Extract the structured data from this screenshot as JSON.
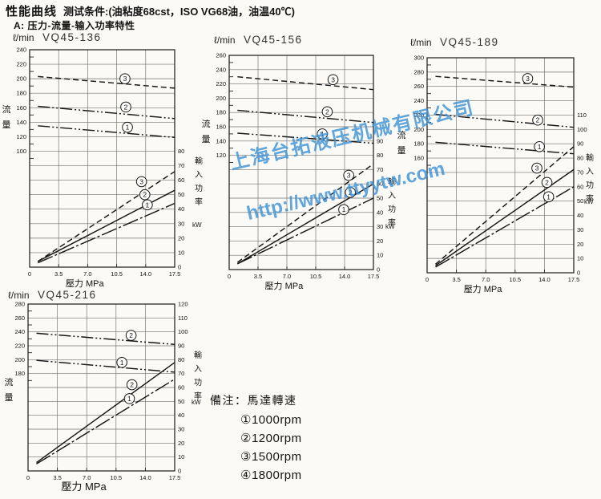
{
  "page": {
    "title_main": "性能曲线",
    "title_conditions": "测试条件:(油粘度68cst，ISO VG68油，油温40℃)",
    "subtitle": "A: 压力-流量-输入功率特性"
  },
  "watermark": {
    "line1": "上海台拓液压机械有限公司",
    "line2": "http://www.ttyytw.com",
    "color": "rgba(62,146,212,0.82)"
  },
  "legend": {
    "heading": "備注：馬達轉速",
    "items": [
      "①1000rpm",
      "②1200rpm",
      "③1500rpm",
      "④1800rpm"
    ]
  },
  "chart_data": [
    {
      "type": "line",
      "unit_label": "ℓ/min",
      "title": "VQ45-136",
      "xlabel": "壓力 MPa",
      "x_ticks": [
        "0",
        "3.5",
        "7.0",
        "10.5",
        "14.0",
        "17.5"
      ],
      "x_tick_vals": [
        0,
        3.5,
        7,
        10.5,
        14,
        17.5
      ],
      "x_range": [
        0,
        17.5
      ],
      "flow_axis": {
        "label": "流量",
        "ticks": [
          240,
          220,
          200,
          180,
          160,
          140,
          120,
          100
        ]
      },
      "power_axis": {
        "label": "輸入功率",
        "unit": "kW",
        "ticks": [
          80,
          70,
          60,
          50,
          40,
          30,
          20,
          10,
          0
        ]
      },
      "align": {
        "flow": 100,
        "power": 80
      },
      "frame_top_flow": 240,
      "flow_series": [
        {
          "label": "3",
          "rpm": "1500rpm",
          "style": "dashed",
          "points": [
            [
              1,
              203
            ],
            [
              17.5,
              187
            ]
          ],
          "label_at": [
            11.5,
            200
          ]
        },
        {
          "label": "2",
          "rpm": "1200rpm",
          "style": "dashdot",
          "points": [
            [
              1,
              162
            ],
            [
              17.5,
              145
            ]
          ],
          "label_at": [
            11.6,
            161
          ]
        },
        {
          "label": "1",
          "rpm": "1000rpm",
          "style": "dashdot",
          "points": [
            [
              1,
              135
            ],
            [
              17.5,
              119
            ]
          ],
          "label_at": [
            11.8,
            133
          ]
        }
      ],
      "power_series": [
        {
          "label": "3",
          "rpm": "1500rpm",
          "style": "dashed",
          "points": [
            [
              1,
              4
            ],
            [
              17.5,
              66
            ]
          ],
          "label_at": [
            13.5,
            59
          ]
        },
        {
          "label": "2",
          "rpm": "1200rpm",
          "style": "solid",
          "points": [
            [
              1,
              4
            ],
            [
              17.5,
              53
            ]
          ],
          "label_at": [
            13.9,
            50
          ]
        },
        {
          "label": "1",
          "rpm": "1000rpm",
          "style": "longdashdot",
          "points": [
            [
              1,
              3
            ],
            [
              17.5,
              44
            ]
          ],
          "label_at": [
            14.2,
            43
          ]
        }
      ]
    },
    {
      "type": "line",
      "unit_label": "ℓ/min",
      "title": "VQ45-156",
      "xlabel": "壓力 MPa",
      "x_ticks": [
        "0",
        "3.5",
        "7.0",
        "10.5",
        "14.0",
        "17.5"
      ],
      "x_tick_vals": [
        0,
        3.5,
        7,
        10.5,
        14,
        17.5
      ],
      "x_range": [
        0,
        17.5
      ],
      "flow_axis": {
        "label": "流量",
        "ticks": [
          260,
          240,
          220,
          200,
          180,
          160,
          140,
          120
        ]
      },
      "power_axis": {
        "label": "輸入功率",
        "unit": "kW",
        "ticks": [
          90,
          80,
          70,
          60,
          50,
          40,
          30,
          20,
          10,
          0
        ]
      },
      "align": {
        "flow": 120,
        "power": 80
      },
      "frame_top_flow": 260,
      "flow_series": [
        {
          "label": "3",
          "rpm": "1500rpm",
          "style": "dashed",
          "points": [
            [
              1,
              230
            ],
            [
              17.5,
              212
            ]
          ],
          "label_at": [
            12.6,
            226
          ]
        },
        {
          "label": "2",
          "rpm": "1200rpm",
          "style": "dashdot",
          "points": [
            [
              1,
              183
            ],
            [
              17.5,
              166
            ]
          ],
          "label_at": [
            11.9,
            181
          ]
        },
        {
          "label": "1",
          "rpm": "1000rpm",
          "style": "dashdot",
          "points": [
            [
              1,
              151
            ],
            [
              17.5,
              137
            ]
          ],
          "label_at": [
            11.3,
            150
          ]
        }
      ],
      "power_series": [
        {
          "label": "3",
          "rpm": "1500rpm",
          "style": "dashed",
          "points": [
            [
              1,
              5
            ],
            [
              17.5,
              74
            ]
          ],
          "label_at": [
            14.5,
            66
          ]
        },
        {
          "label": "2",
          "rpm": "1200rpm",
          "style": "solid",
          "points": [
            [
              1,
              4
            ],
            [
              17.5,
              60
            ]
          ],
          "label_at": [
            14.7,
            54
          ]
        },
        {
          "label": "1",
          "rpm": "1000rpm",
          "style": "longdashdot",
          "points": [
            [
              1,
              4
            ],
            [
              17.5,
              50
            ]
          ],
          "label_at": [
            13.9,
            42
          ]
        }
      ]
    },
    {
      "type": "line",
      "unit_label": "ℓ/min",
      "title": "VQ45-189",
      "xlabel": "壓力 MPa",
      "x_ticks": [
        "0",
        "3.5",
        "7.0",
        "10.5",
        "14.0",
        "17.5"
      ],
      "x_tick_vals": [
        0,
        3.5,
        7,
        10.5,
        14,
        17.5
      ],
      "x_range": [
        0,
        17.5
      ],
      "flow_axis": {
        "label": "流量",
        "ticks": [
          300,
          280,
          260,
          240,
          220,
          200,
          180,
          160
        ]
      },
      "power_axis": {
        "label": "輸入功率",
        "unit": "kW",
        "ticks": [
          110,
          100,
          90,
          80,
          70,
          60,
          50,
          40,
          30,
          20,
          10,
          0
        ]
      },
      "align": {
        "flow": 220,
        "power": 110
      },
      "frame_top_flow": 300,
      "flow_series": [
        {
          "label": "3",
          "rpm": "1500rpm",
          "style": "dashed",
          "points": [
            [
              1,
              274
            ],
            [
              17.5,
              259
            ]
          ],
          "label_at": [
            12.0,
            271
          ]
        },
        {
          "label": "2",
          "rpm": "1200rpm",
          "style": "dashdot",
          "points": [
            [
              1,
              221
            ],
            [
              17.5,
              203
            ]
          ],
          "label_at": [
            13.2,
            213
          ]
        },
        {
          "label": "1",
          "rpm": "1000rpm",
          "style": "dashdot",
          "points": [
            [
              1,
              182
            ],
            [
              17.5,
              166
            ]
          ],
          "label_at": [
            13.4,
            176
          ]
        }
      ],
      "power_series": [
        {
          "label": "3",
          "rpm": "1500rpm",
          "style": "dashed",
          "points": [
            [
              1,
              6
            ],
            [
              17.5,
              88
            ]
          ],
          "label_at": [
            13.1,
            73
          ]
        },
        {
          "label": "2",
          "rpm": "1200rpm",
          "style": "solid",
          "points": [
            [
              1,
              5
            ],
            [
              17.5,
              72
            ]
          ],
          "label_at": [
            14.3,
            63
          ]
        },
        {
          "label": "1",
          "rpm": "1000rpm",
          "style": "longdashdot",
          "points": [
            [
              1,
              4
            ],
            [
              17.5,
              60
            ]
          ],
          "label_at": [
            14.5,
            53
          ]
        }
      ]
    },
    {
      "type": "line",
      "unit_label": "ℓ/min",
      "title": "VQ45-216",
      "xlabel": "壓力 MPa",
      "x_ticks": [
        "0",
        "3.5",
        "7.0",
        "10.5",
        "14.0",
        "17.5"
      ],
      "x_tick_vals": [
        0,
        3.5,
        7,
        10.5,
        14,
        17.5
      ],
      "x_range": [
        0,
        17.5
      ],
      "flow_axis": {
        "label": "流量",
        "ticks": [
          280,
          260,
          240,
          220,
          200,
          180
        ]
      },
      "power_axis": {
        "label": "輸入功率",
        "unit": "kW",
        "ticks": [
          120,
          110,
          100,
          90,
          80,
          70,
          60,
          50,
          40,
          30,
          20,
          10,
          0
        ]
      },
      "align": {
        "flow": 280,
        "power": 120
      },
      "frame_top_flow": 280,
      "flow_series": [
        {
          "label": "2",
          "rpm": "1200rpm",
          "style": "dashdot",
          "points": [
            [
              1,
              238
            ],
            [
              17.5,
              222
            ]
          ],
          "label_at": [
            12.3,
            235
          ]
        },
        {
          "label": "1",
          "rpm": "1000rpm",
          "style": "dashdot",
          "points": [
            [
              1,
              199
            ],
            [
              17.5,
              182
            ]
          ],
          "label_at": [
            11.2,
            196
          ]
        }
      ],
      "power_series": [
        {
          "label": "2",
          "rpm": "1200rpm",
          "style": "solid",
          "points": [
            [
              1,
              6
            ],
            [
              17.5,
              78
            ]
          ],
          "label_at": [
            12.4,
            62
          ]
        },
        {
          "label": "1",
          "rpm": "1000rpm",
          "style": "longdashdot",
          "points": [
            [
              1,
              5
            ],
            [
              17.5,
              66
            ]
          ],
          "label_at": [
            12.1,
            52
          ]
        }
      ]
    }
  ]
}
